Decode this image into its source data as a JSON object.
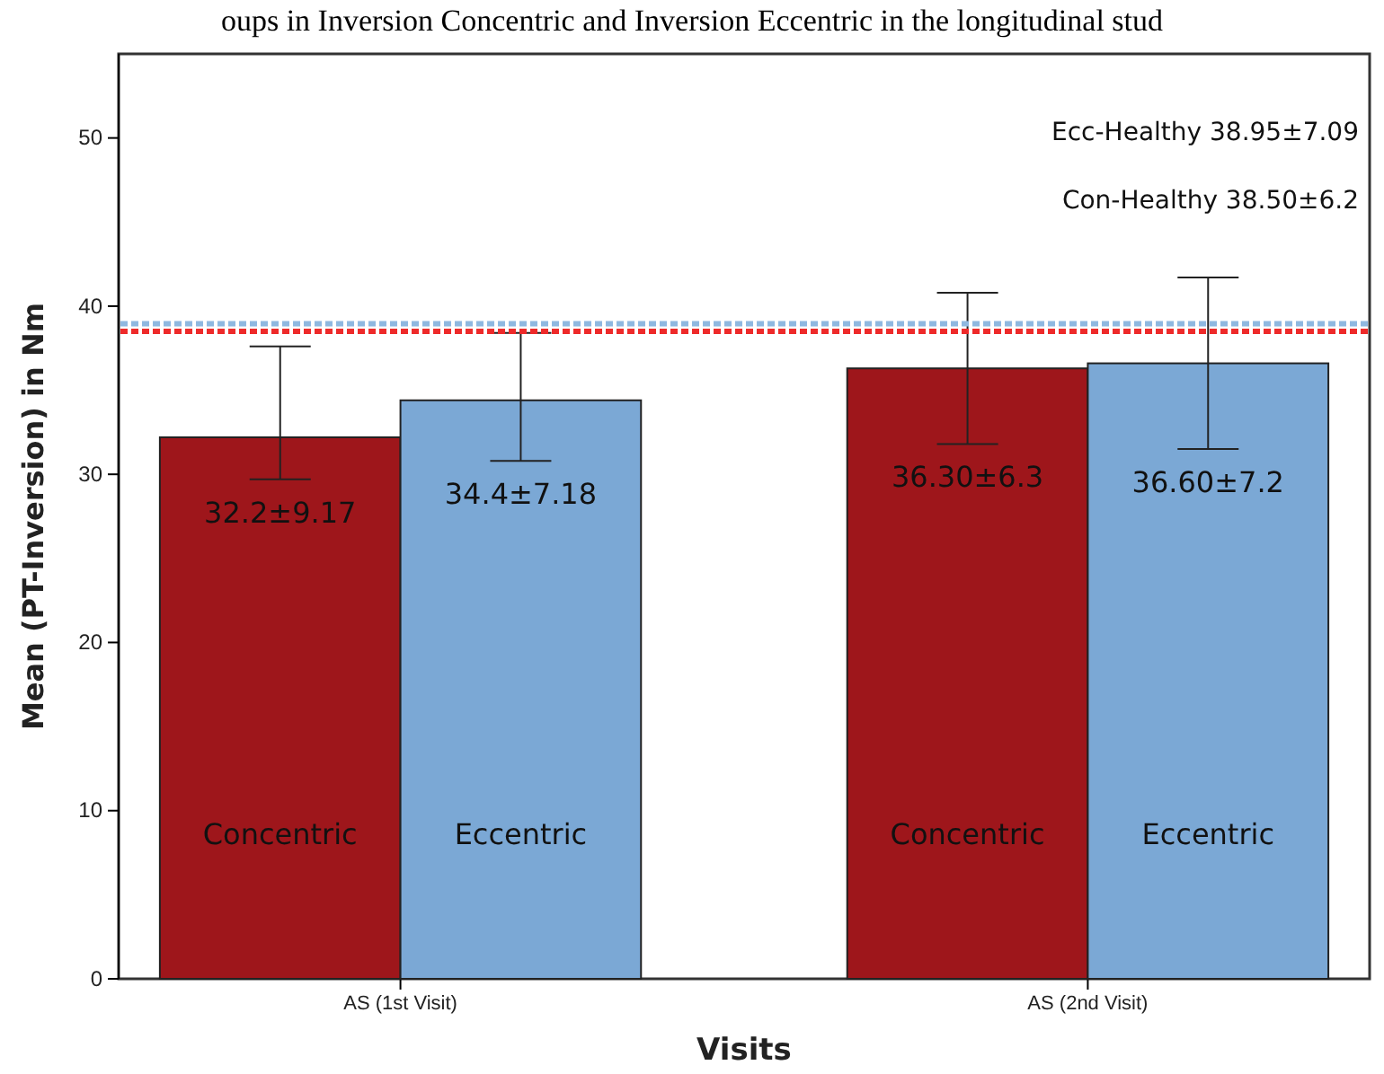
{
  "chart_data": {
    "type": "bar",
    "title": "oups in Inversion Concentric and Inversion Eccentric in the longitudinal stud",
    "xlabel": "Visits",
    "ylabel": "Mean (PT-Inversion) in Nm",
    "categories": [
      "AS (1st Visit)",
      "AS (2nd Visit)"
    ],
    "series": [
      {
        "name": "Concentric",
        "color": "#9e161b",
        "values": [
          32.2,
          36.3
        ],
        "errors": [
          [
            29.7,
            37.6
          ],
          [
            31.8,
            40.8
          ]
        ],
        "value_labels": [
          "32.2±9.17",
          "36.30±6.3"
        ]
      },
      {
        "name": "Eccentric",
        "color": "#7ba8d5",
        "values": [
          34.4,
          36.6
        ],
        "errors": [
          [
            30.8,
            38.4
          ],
          [
            31.5,
            41.7
          ]
        ],
        "value_labels": [
          "34.4±7.18",
          "36.60±7.2"
        ]
      }
    ],
    "ylim": [
      0,
      55
    ],
    "yticks": [
      0,
      10,
      20,
      30,
      40,
      50
    ],
    "grid": false,
    "legend": false,
    "annotations": [
      "Ecc-Healthy 38.95±7.09",
      "Con-Healthy 38.50±6.2"
    ],
    "ref_lines": [
      {
        "axis": "y",
        "value": 38.95,
        "color": "#8fb8e0",
        "line_style": "dotted"
      },
      {
        "axis": "y",
        "value": 38.5,
        "color": "#ee2a2a",
        "line_style": "dotted"
      }
    ]
  }
}
